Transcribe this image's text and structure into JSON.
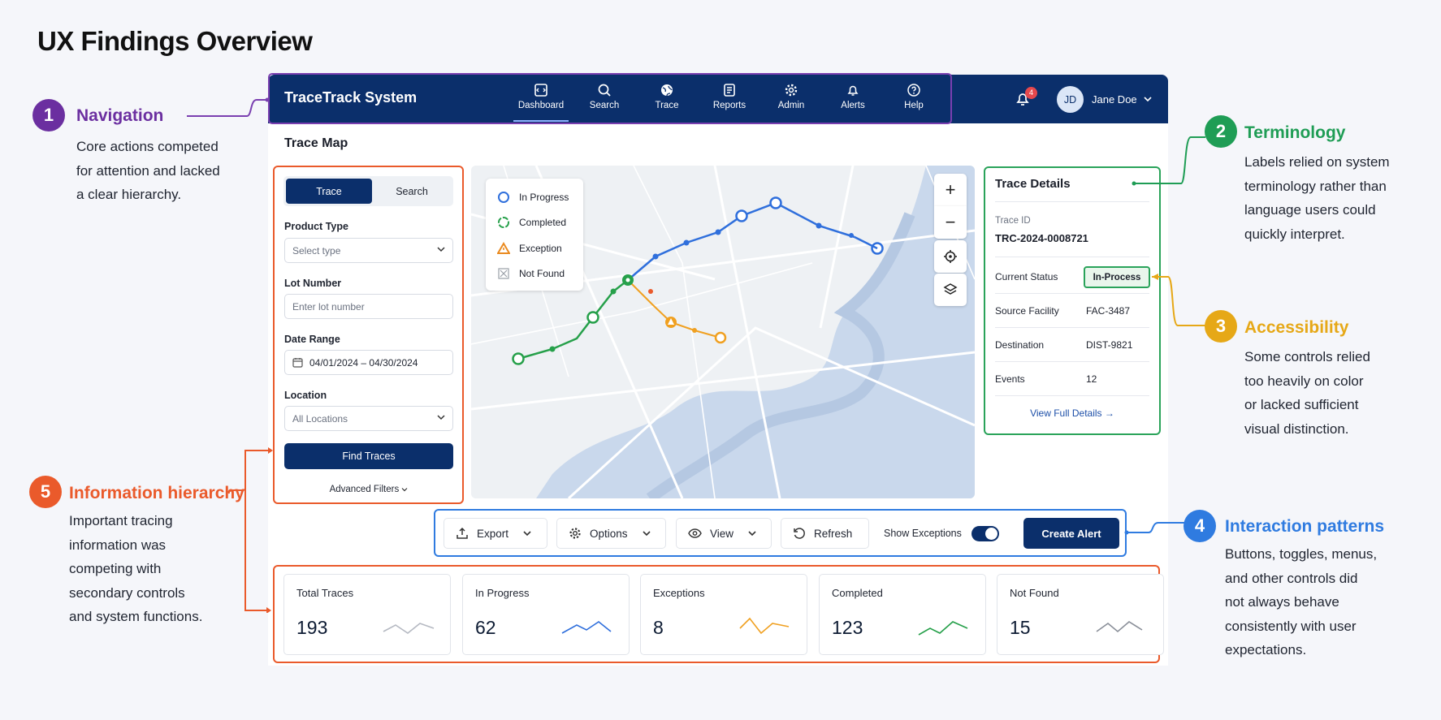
{
  "page_title": "UX Findings Overview",
  "findings": [
    {
      "num": "1",
      "title": "Navigation",
      "color": "#6b2fa0",
      "body": [
        "Core actions competed",
        "for attention and lacked",
        "a clear hierarchy."
      ]
    },
    {
      "num": "2",
      "title": "Terminology",
      "color": "#1f9d55",
      "body": [
        "Labels relied on system",
        "terminology rather than",
        "language users could",
        "quickly interpret."
      ]
    },
    {
      "num": "3",
      "title": "Accessibility",
      "color": "#e6a817",
      "body": [
        "Some controls relied",
        "too heavily on color",
        "or lacked sufficient",
        "visual distinction."
      ]
    },
    {
      "num": "4",
      "title": "Interaction patterns",
      "color": "#2f7be0",
      "body": [
        "Buttons, toggles, menus,",
        "and other controls did",
        "not always behave",
        "consistently with user",
        "expectations."
      ]
    },
    {
      "num": "5",
      "title": "Information hierarchy",
      "color": "#ea5a2b",
      "body": [
        "Important tracing",
        "information was",
        "competing with",
        "secondary controls",
        "and system functions."
      ]
    }
  ],
  "app": {
    "brand": "TraceTrack System",
    "nav": [
      {
        "label": "Dashboard",
        "icon": "dashboard-icon"
      },
      {
        "label": "Search",
        "icon": "search-icon"
      },
      {
        "label": "Trace",
        "icon": "globe-icon"
      },
      {
        "label": "Reports",
        "icon": "reports-icon"
      },
      {
        "label": "Admin",
        "icon": "gear-icon"
      },
      {
        "label": "Alerts",
        "icon": "bell-icon"
      },
      {
        "label": "Help",
        "icon": "help-icon"
      }
    ],
    "notification_count": "4",
    "user_initials": "JD",
    "user_name": "Jane Doe",
    "section_title": "Trace Map"
  },
  "search_panel": {
    "tabs": [
      "Trace",
      "Search"
    ],
    "product_type_label": "Product Type",
    "product_type_value": "Select type",
    "lot_number_label": "Lot Number",
    "lot_number_placeholder": "Enter lot number",
    "date_range_label": "Date Range",
    "date_range_value": "04/01/2024 – 04/30/2024",
    "location_label": "Location",
    "location_value": "All Locations",
    "find_button": "Find Traces",
    "advanced_filters": "Advanced Filters"
  },
  "legend": [
    "In Progress",
    "Completed",
    "Exception",
    "Not Found"
  ],
  "map_controls": [
    "+",
    "−"
  ],
  "trace_details": {
    "title": "Trace Details",
    "trace_id_label": "Trace ID",
    "trace_id": "TRC-2024-0008721",
    "rows": [
      {
        "key": "Current Status",
        "value": "In-Process"
      },
      {
        "key": "Source Facility",
        "value": "FAC-3487"
      },
      {
        "key": "Destination",
        "value": "DIST-9821"
      },
      {
        "key": "Events",
        "value": "12"
      }
    ],
    "link": "View Full Details"
  },
  "toolbar": {
    "export": "Export",
    "options": "Options",
    "view": "View",
    "refresh": "Refresh",
    "show_exceptions": "Show Exceptions",
    "show_exceptions_on": true,
    "create_alert": "Create Alert"
  },
  "stats": [
    {
      "title": "Total Traces",
      "value": "193",
      "color": "#b5b9c2"
    },
    {
      "title": "In Progress",
      "value": "62",
      "color": "#2f6fdc"
    },
    {
      "title": "Exceptions",
      "value": "8",
      "color": "#f0a020"
    },
    {
      "title": "Completed",
      "value": "123",
      "color": "#26a04a"
    },
    {
      "title": "Not Found",
      "value": "15",
      "color": "#8a8f99"
    }
  ]
}
